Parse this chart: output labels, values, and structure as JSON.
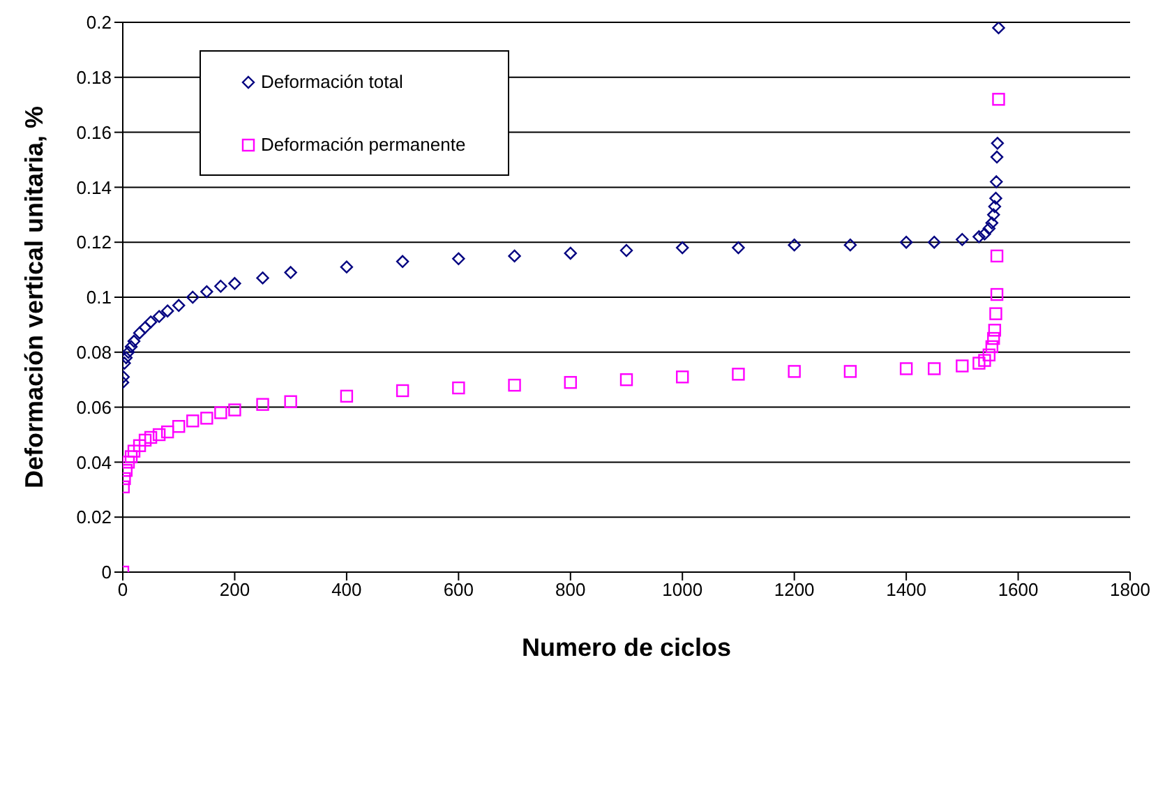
{
  "chart_data": {
    "type": "scatter",
    "xlabel": "Numero de ciclos",
    "ylabel": "Deformación vertical unitaria, %",
    "xlim": [
      0,
      1800
    ],
    "xticks": [
      0,
      200,
      400,
      600,
      800,
      1000,
      1200,
      1400,
      1600,
      1800
    ],
    "ylim": [
      0,
      0.2
    ],
    "yticks": [
      0,
      0.02,
      0.04,
      0.06,
      0.08,
      0.1,
      0.12,
      0.14,
      0.16,
      0.18,
      0.2
    ],
    "grid": "y",
    "legend": "top left",
    "series": [
      {
        "name": "Deformación total",
        "color": "#000080",
        "marker": "diamond",
        "x": [
          0,
          1,
          3,
          6,
          10,
          15,
          20,
          30,
          40,
          50,
          65,
          80,
          100,
          125,
          150,
          175,
          200,
          250,
          300,
          400,
          500,
          600,
          700,
          800,
          900,
          1000,
          1100,
          1200,
          1300,
          1400,
          1450,
          1500,
          1530,
          1540,
          1548,
          1553,
          1556,
          1558,
          1560,
          1561,
          1562,
          1563,
          1565
        ],
        "values": [
          0.069,
          0.071,
          0.076,
          0.078,
          0.08,
          0.082,
          0.084,
          0.087,
          0.089,
          0.091,
          0.093,
          0.095,
          0.097,
          0.1,
          0.102,
          0.104,
          0.105,
          0.107,
          0.109,
          0.111,
          0.113,
          0.114,
          0.115,
          0.116,
          0.117,
          0.118,
          0.118,
          0.119,
          0.119,
          0.12,
          0.12,
          0.121,
          0.122,
          0.123,
          0.125,
          0.127,
          0.13,
          0.133,
          0.136,
          0.142,
          0.151,
          0.156,
          0.198
        ]
      },
      {
        "name": "Deformación permanente",
        "color": "#ff00ff",
        "marker": "square",
        "x": [
          0,
          1,
          3,
          6,
          10,
          15,
          20,
          30,
          40,
          50,
          65,
          80,
          100,
          125,
          150,
          175,
          200,
          250,
          300,
          400,
          500,
          600,
          700,
          800,
          900,
          1000,
          1100,
          1200,
          1300,
          1400,
          1450,
          1500,
          1530,
          1540,
          1548,
          1553,
          1556,
          1558,
          1560,
          1562,
          1562,
          1565
        ],
        "values": [
          0,
          0.031,
          0.034,
          0.037,
          0.04,
          0.042,
          0.044,
          0.046,
          0.048,
          0.049,
          0.05,
          0.051,
          0.053,
          0.055,
          0.056,
          0.058,
          0.059,
          0.061,
          0.062,
          0.064,
          0.066,
          0.067,
          0.068,
          0.069,
          0.07,
          0.071,
          0.072,
          0.073,
          0.073,
          0.074,
          0.074,
          0.075,
          0.076,
          0.077,
          0.079,
          0.082,
          0.085,
          0.088,
          0.094,
          0.101,
          0.115,
          0.172
        ]
      }
    ]
  }
}
